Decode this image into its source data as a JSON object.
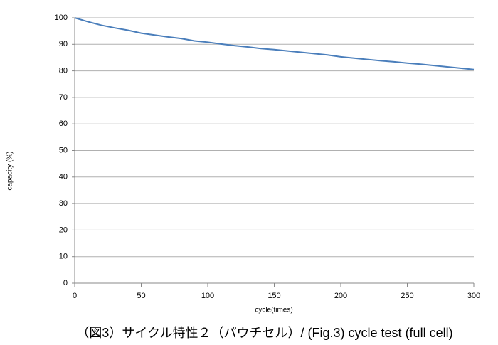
{
  "chart_data": {
    "type": "line",
    "title": "（図3）サイクル特性２（パウチセル）/ (Fig.3) cycle test (full cell)",
    "x_label": "cycle(times)",
    "y_label": "capacity (%)",
    "x": [
      0,
      10,
      20,
      30,
      40,
      50,
      60,
      70,
      80,
      90,
      100,
      110,
      120,
      130,
      140,
      150,
      160,
      170,
      180,
      190,
      200,
      210,
      220,
      230,
      240,
      250,
      260,
      270,
      280,
      290,
      300
    ],
    "series": [
      {
        "color": "#4a7ebb",
        "values": [
          100,
          98.5,
          97.2,
          96.2,
          95.3,
          94.2,
          93.5,
          92.8,
          92.2,
          91.3,
          90.8,
          90.1,
          89.5,
          89.0,
          88.4,
          88.0,
          87.5,
          87.0,
          86.5,
          86.0,
          85.3,
          84.8,
          84.3,
          83.8,
          83.4,
          82.9,
          82.5,
          82.0,
          81.5,
          81.0,
          80.5
        ]
      }
    ],
    "xlim": [
      0,
      300
    ],
    "xticks": [
      0,
      50,
      100,
      150,
      200,
      250,
      300
    ],
    "ylim": [
      0,
      100
    ],
    "yticks": [
      0,
      10,
      20,
      30,
      40,
      50,
      60,
      70,
      80,
      90,
      100
    ],
    "grid": true
  }
}
